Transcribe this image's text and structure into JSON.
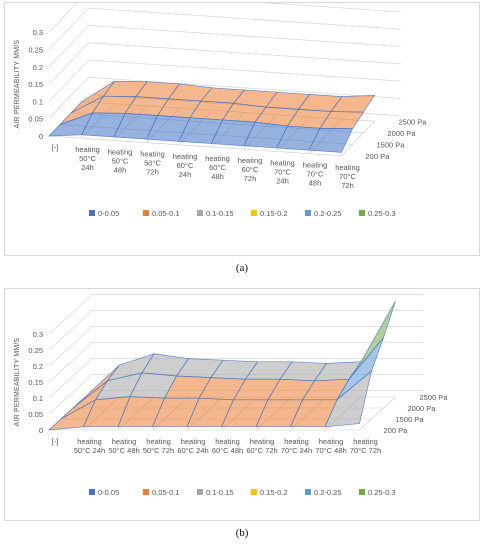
{
  "charts": [
    {
      "id": "a",
      "caption": "(a)",
      "chart_data": {
        "type": "surface",
        "ylabel": "AIR PERMEABILITY MM/S",
        "yticks": [
          "0",
          "0.05",
          "0.1",
          "0.15",
          "0.2",
          "0.25",
          "0.3"
        ],
        "ylim": [
          0,
          0.3
        ],
        "x_categories": [
          "[-]",
          "heating 50°C 24h",
          "heating 50°C 48h",
          "heating 50°C 72h",
          "heating 60°C 24h",
          "heating 60°C 48h",
          "heating 60°C 72h",
          "heating 70°C 24h",
          "heating 70°C 48h",
          "heating 70°C 72h"
        ],
        "depth_categories": [
          "200 Pa",
          "1500 Pa",
          "2000 Pa",
          "2500 Pa"
        ],
        "values": [
          [
            0,
            0,
            0,
            0
          ],
          [
            0.01,
            0.04,
            0.055,
            0.065
          ],
          [
            0.01,
            0.045,
            0.06,
            0.07
          ],
          [
            0.01,
            0.045,
            0.06,
            0.07
          ],
          [
            0.01,
            0.045,
            0.06,
            0.065
          ],
          [
            0.01,
            0.045,
            0.06,
            0.065
          ],
          [
            0.01,
            0.045,
            0.055,
            0.065
          ],
          [
            0.01,
            0.04,
            0.055,
            0.065
          ],
          [
            0.01,
            0.04,
            0.055,
            0.065
          ],
          [
            0.01,
            0.045,
            0.06,
            0.075
          ]
        ],
        "legend": [
          "0-0.05",
          "0.05-0.1",
          "0.1-0.15",
          "0.15-0.2",
          "0.2-0.25",
          "0.25-0.3"
        ],
        "colors": [
          "#4472c4",
          "#ed7d31",
          "#a5a5a5",
          "#ffc000",
          "#5b9bd5",
          "#70ad47"
        ],
        "grid": true,
        "legend_position": "bottom"
      }
    },
    {
      "id": "b",
      "caption": "(b)",
      "chart_data": {
        "type": "surface",
        "ylabel": "AIR PERMEABILITY MM/S",
        "yticks": [
          "0",
          "0.05",
          "0.1",
          "0.15",
          "0.2",
          "0.25",
          "0.3"
        ],
        "ylim": [
          0,
          0.3
        ],
        "x_categories": [
          "[-]",
          "heating 50°C 24h",
          "heating 50°C 48h",
          "heating 50°C 72h",
          "heating 60°C 24h",
          "heating 60°C 48h",
          "heating 60°C 72h",
          "heating 70°C 24h",
          "heating 70°C 48h",
          "heating 70°C 72h"
        ],
        "depth_categories": [
          "200 Pa",
          "1500 Pa",
          "2000 Pa",
          "2500 Pa"
        ],
        "values": [
          [
            0,
            0,
            0,
            0
          ],
          [
            0.01,
            0.06,
            0.085,
            0.1
          ],
          [
            0.01,
            0.07,
            0.11,
            0.135
          ],
          [
            0.01,
            0.065,
            0.1,
            0.12
          ],
          [
            0.01,
            0.065,
            0.095,
            0.115
          ],
          [
            0.01,
            0.06,
            0.09,
            0.11
          ],
          [
            0.01,
            0.06,
            0.09,
            0.11
          ],
          [
            0.01,
            0.06,
            0.085,
            0.105
          ],
          [
            0.01,
            0.06,
            0.09,
            0.11
          ],
          [
            0.02,
            0.15,
            0.22,
            0.3
          ]
        ],
        "legend": [
          "0-0.05",
          "0.05-0.1",
          "0.1-0.15",
          "0.15-0.2",
          "0.2-0.25",
          "0.25-0.3"
        ],
        "colors": [
          "#4472c4",
          "#ed7d31",
          "#a5a5a5",
          "#ffc000",
          "#5b9bd5",
          "#70ad47"
        ],
        "grid": true,
        "legend_position": "bottom"
      }
    }
  ]
}
